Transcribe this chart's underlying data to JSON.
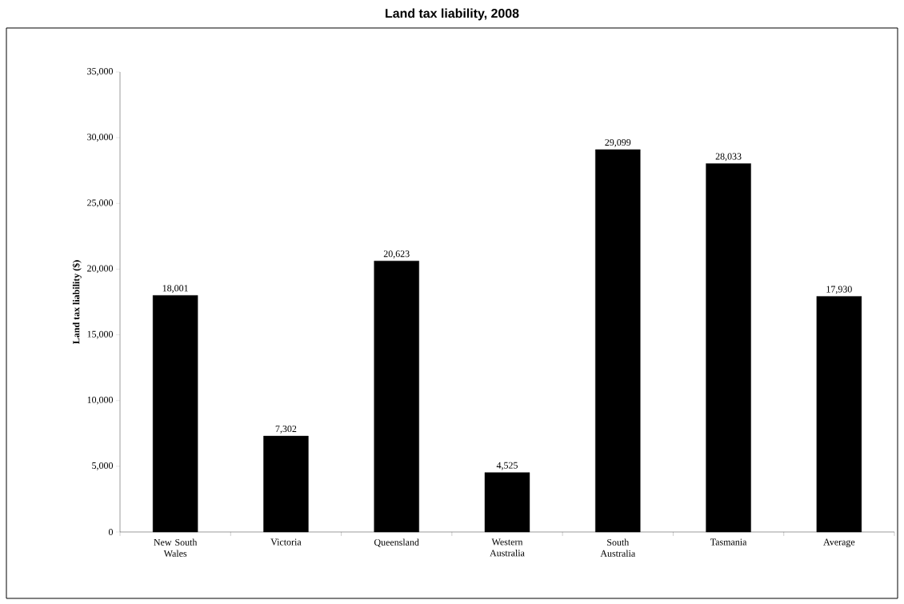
{
  "chart_data": {
    "type": "bar",
    "title": "Land tax liability, 2008",
    "ylabel": "Land tax liability ($)",
    "categories": [
      "New South Wales",
      "Victoria",
      "Queensland",
      "Western Australia",
      "South Australia",
      "Tasmania",
      "Average"
    ],
    "values": [
      18001,
      7302,
      20623,
      4525,
      29099,
      28033,
      17930
    ],
    "value_labels": [
      "18,001",
      "7,302",
      "20,623",
      "4,525",
      "29,099",
      "28,033",
      "17,930"
    ],
    "color": "#000000",
    "ylim": [
      0,
      35000
    ],
    "yticks": [
      0,
      {
        "value": 5000,
        "label": "5,000"
      },
      {
        "value": 10000,
        "label": "10,000"
      },
      {
        "value": 15000,
        "label": "15,000"
      },
      {
        "value": 20000,
        "label": "20,000"
      },
      {
        "value": 25000,
        "label": "25,000"
      },
      {
        "value": 30000,
        "label": "30,000"
      },
      {
        "value": 35000,
        "label": "35,000"
      }
    ],
    "grid": false
  }
}
